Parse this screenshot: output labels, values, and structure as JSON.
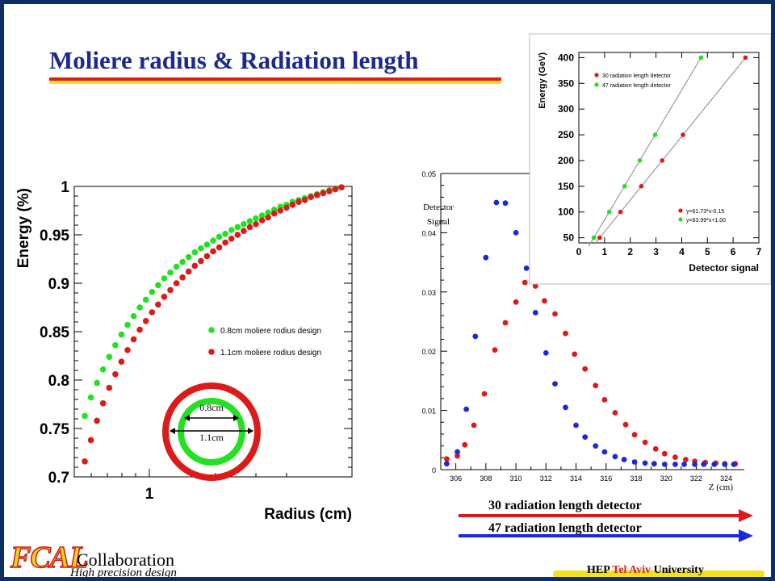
{
  "slide": {
    "title": "Moliere radius & Radiation length",
    "footer": {
      "logo_text": "FCAL",
      "collab": "Collaboration",
      "tagline": "High precision design",
      "univ_hep": "HEP",
      "univ_city": "Tel Aviv",
      "univ_rest": "University"
    },
    "colors": {
      "green": "#22e022",
      "red": "#dd1a1a",
      "blue": "#1a2ad8",
      "title": "#1b2a8c",
      "frame": "#0d2f63",
      "yellow": "#f1e11f"
    }
  },
  "chart_data": [
    {
      "id": "moliere",
      "type": "scatter",
      "xlabel": "Radius (cm)",
      "ylabel": "Energy (%)",
      "x_tick_labels": [
        "1"
      ],
      "y_tick_labels": [
        "0.7",
        "0.75",
        "0.8",
        "0.85",
        "0.9",
        "0.95",
        "1"
      ],
      "ylim": [
        0.7,
        1.0
      ],
      "log_x": true,
      "series": [
        {
          "name": "0.8cm moliere rodius design",
          "color": "green",
          "y": [
            0.763,
            0.782,
            0.797,
            0.811,
            0.824,
            0.836,
            0.847,
            0.857,
            0.866,
            0.875,
            0.883,
            0.891,
            0.898,
            0.905,
            0.911,
            0.917,
            0.922,
            0.927,
            0.932,
            0.936,
            0.94,
            0.944,
            0.948,
            0.951,
            0.955,
            0.958,
            0.961,
            0.964,
            0.967,
            0.97,
            0.973,
            0.976,
            0.979,
            0.981,
            0.984,
            0.986,
            0.988,
            0.99,
            0.992,
            0.994,
            0.996,
            0.998,
            0.999
          ]
        },
        {
          "name": "1.1cm moliere rodius design",
          "color": "red",
          "y": [
            0.716,
            0.738,
            0.758,
            0.776,
            0.792,
            0.806,
            0.819,
            0.831,
            0.842,
            0.852,
            0.861,
            0.87,
            0.878,
            0.886,
            0.893,
            0.9,
            0.906,
            0.912,
            0.918,
            0.923,
            0.928,
            0.933,
            0.937,
            0.942,
            0.946,
            0.95,
            0.954,
            0.958,
            0.961,
            0.965,
            0.968,
            0.972,
            0.975,
            0.978,
            0.981,
            0.984,
            0.986,
            0.989,
            0.991,
            0.993,
            0.995,
            0.997,
            0.999
          ]
        }
      ],
      "inset": {
        "outer_label": "1.1cm",
        "inner_label": "0.8cm"
      }
    },
    {
      "id": "longitudinal",
      "type": "scatter",
      "ylabel": "Detector Signal",
      "xlabel": "Z (cm)",
      "x_tick_labels": [
        "306",
        "308",
        "310",
        "312",
        "314",
        "316",
        "318",
        "320",
        "322",
        "324"
      ],
      "y_tick_labels": [
        "0",
        "0.01",
        "0.02",
        "0.03",
        "0.04",
        "0.05"
      ],
      "xlim": [
        305,
        325.2
      ],
      "ylim": [
        0,
        0.05
      ],
      "series": [
        {
          "name": "30 radiation length detector",
          "color": "red",
          "x": [
            305.4,
            306.1,
            306.6,
            307.2,
            307.9,
            308.6,
            309.3,
            310.0,
            310.6,
            311.3,
            311.9,
            312.6,
            313.3,
            313.9,
            314.6,
            315.3,
            315.9,
            316.6,
            317.3,
            317.9,
            318.6,
            319.3,
            319.9,
            320.6,
            321.3,
            321.9,
            322.6,
            323.3,
            323.9,
            324.6
          ],
          "y": [
            0.0018,
            0.0023,
            0.0042,
            0.0075,
            0.0128,
            0.0202,
            0.0248,
            0.0283,
            0.0316,
            0.031,
            0.0285,
            0.0263,
            0.023,
            0.0195,
            0.017,
            0.0142,
            0.0118,
            0.0096,
            0.0076,
            0.0059,
            0.0046,
            0.0035,
            0.0027,
            0.0021,
            0.0017,
            0.0014,
            0.0012,
            0.0011,
            0.001,
            0.001
          ]
        },
        {
          "name": "47 radiation length detector",
          "color": "blue",
          "x": [
            305.4,
            306.1,
            306.7,
            307.3,
            308.0,
            308.7,
            309.3,
            310.0,
            310.7,
            311.3,
            312.0,
            312.6,
            313.3,
            314.0,
            314.6,
            315.3,
            315.9,
            316.6,
            317.2,
            317.9,
            318.6,
            319.2,
            319.9,
            320.6,
            321.2,
            321.9,
            322.5,
            323.2,
            323.9,
            324.5
          ],
          "y": [
            0.001,
            0.003,
            0.0102,
            0.0225,
            0.0358,
            0.0451,
            0.045,
            0.04,
            0.034,
            0.0265,
            0.0197,
            0.0145,
            0.0105,
            0.0075,
            0.0055,
            0.004,
            0.003,
            0.0022,
            0.0017,
            0.0013,
            0.0011,
            0.001,
            0.0009,
            0.0009,
            0.0009,
            0.0009,
            0.0009,
            0.0009,
            0.0009,
            0.0009
          ]
        }
      ]
    },
    {
      "id": "calibration",
      "type": "scatter",
      "xlabel": "Detector signal",
      "ylabel": "Energy (GeV)",
      "xlim": [
        0,
        7
      ],
      "ylim": [
        40,
        410
      ],
      "x_tick_labels": [
        "0",
        "1",
        "2",
        "3",
        "4",
        "5",
        "6",
        "7"
      ],
      "y_tick_labels": [
        "50",
        "100",
        "150",
        "200",
        "250",
        "300",
        "350",
        "400"
      ],
      "fits": [
        "y=61.73*x-0.15",
        "y=83.99*x+1.00"
      ],
      "series": [
        {
          "name": "30 radiation length detector",
          "color": "red",
          "x": [
            0.81,
            1.62,
            2.43,
            3.24,
            4.05,
            6.48
          ],
          "y": [
            50,
            100,
            150,
            200,
            250,
            400
          ],
          "fit": {
            "slope": 61.73,
            "intercept": -0.15
          }
        },
        {
          "name": "47 radiation length detector",
          "color": "green",
          "x": [
            0.58,
            1.18,
            1.78,
            2.37,
            2.97,
            4.75
          ],
          "y": [
            50,
            100,
            150,
            200,
            250,
            400
          ],
          "fit": {
            "slope": 83.99,
            "intercept": 1.0
          }
        }
      ]
    }
  ]
}
